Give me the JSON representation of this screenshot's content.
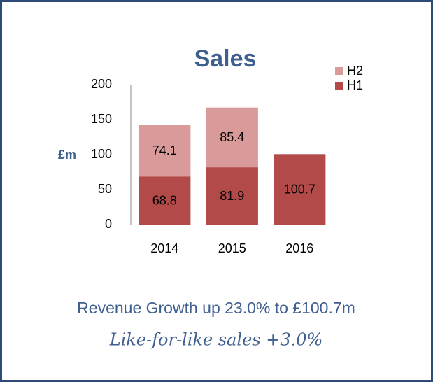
{
  "chart_data": {
    "type": "bar",
    "stacked": true,
    "title": "Sales",
    "y_label": "£m",
    "categories": [
      "2014",
      "2015",
      "2016"
    ],
    "series": [
      {
        "name": "H1",
        "color": "#b24a4a",
        "values": [
          68.8,
          81.9,
          100.7
        ]
      },
      {
        "name": "H2",
        "color": "#d99a9a",
        "values": [
          74.1,
          85.4,
          null
        ]
      }
    ],
    "ylim": [
      0,
      200
    ],
    "yticks": [
      0,
      50,
      100,
      150,
      200
    ],
    "grid": false,
    "legend": "top-right",
    "annotations": [
      "Revenue Growth up 23.0% to £100.7m",
      "Like-for-like sales +3.0%"
    ]
  }
}
